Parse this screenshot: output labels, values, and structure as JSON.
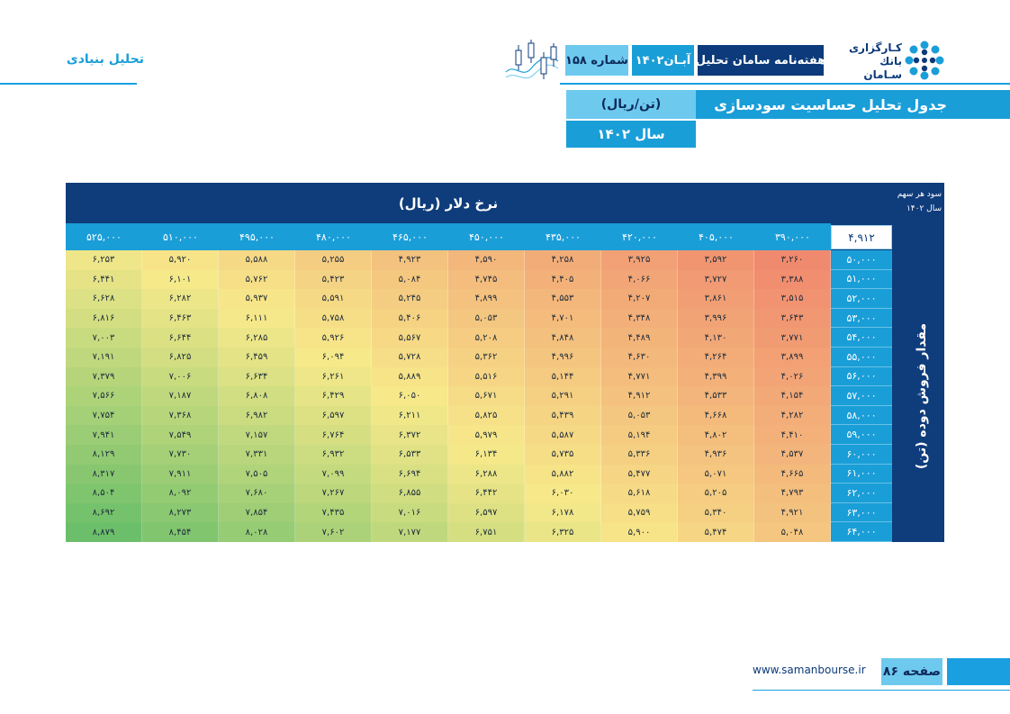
{
  "section_label": "تحلیل بنیادی",
  "header": {
    "weekly": "هفته‌نامه سامان تحلیل",
    "month": "آبـان۱۴۰۲",
    "number": "شماره ۱۵۸",
    "logo_line1": "کـارگزاری",
    "logo_line2": "بانك سـامان"
  },
  "title": "جدول تحلیل حساسیت سودسازی",
  "unit": "(تن/ریال)",
  "year": "سال ۱۴۰۲",
  "table": {
    "dollar_title": "نرخ دلار (ریال)",
    "eps_label_1": "سود هر سهم",
    "eps_label_2": "سال ۱۴۰۲",
    "eps_value": "۴,۹۱۲",
    "qty_label": "مقدار فروش دوده (تن)",
    "prices": [
      "۳۹۰,۰۰۰",
      "۴۰۵,۰۰۰",
      "۴۲۰,۰۰۰",
      "۴۳۵,۰۰۰",
      "۴۵۰,۰۰۰",
      "۴۶۵,۰۰۰",
      "۴۸۰,۰۰۰",
      "۴۹۵,۰۰۰",
      "۵۱۰,۰۰۰",
      "۵۲۵,۰۰۰"
    ],
    "quantities": [
      "۵۰,۰۰۰",
      "۵۱,۰۰۰",
      "۵۲,۰۰۰",
      "۵۳,۰۰۰",
      "۵۴,۰۰۰",
      "۵۵,۰۰۰",
      "۵۶,۰۰۰",
      "۵۷,۰۰۰",
      "۵۸,۰۰۰",
      "۵۹,۰۰۰",
      "۶۰,۰۰۰",
      "۶۱,۰۰۰",
      "۶۲,۰۰۰",
      "۶۳,۰۰۰",
      "۶۴,۰۰۰"
    ],
    "values": [
      [
        "۳,۲۶۰",
        "۳,۵۹۲",
        "۳,۹۲۵",
        "۴,۲۵۸",
        "۴,۵۹۰",
        "۴,۹۲۳",
        "۵,۲۵۵",
        "۵,۵۸۸",
        "۵,۹۲۰",
        "۶,۲۵۳"
      ],
      [
        "۳,۳۸۸",
        "۳,۷۲۷",
        "۴,۰۶۶",
        "۴,۴۰۵",
        "۴,۷۴۵",
        "۵,۰۸۴",
        "۵,۴۲۳",
        "۵,۷۶۲",
        "۶,۱۰۱",
        "۶,۴۴۱"
      ],
      [
        "۳,۵۱۵",
        "۳,۸۶۱",
        "۴,۲۰۷",
        "۴,۵۵۳",
        "۴,۸۹۹",
        "۵,۲۴۵",
        "۵,۵۹۱",
        "۵,۹۳۷",
        "۶,۲۸۲",
        "۶,۶۲۸"
      ],
      [
        "۳,۶۴۳",
        "۳,۹۹۶",
        "۴,۳۴۸",
        "۴,۷۰۱",
        "۵,۰۵۳",
        "۵,۴۰۶",
        "۵,۷۵۸",
        "۶,۱۱۱",
        "۶,۴۶۳",
        "۶,۸۱۶"
      ],
      [
        "۳,۷۷۱",
        "۴,۱۳۰",
        "۴,۴۸۹",
        "۴,۸۴۸",
        "۵,۲۰۸",
        "۵,۵۶۷",
        "۵,۹۲۶",
        "۶,۲۸۵",
        "۶,۶۴۴",
        "۷,۰۰۳"
      ],
      [
        "۳,۸۹۹",
        "۴,۲۶۴",
        "۴,۶۳۰",
        "۴,۹۹۶",
        "۵,۳۶۲",
        "۵,۷۲۸",
        "۶,۰۹۴",
        "۶,۴۵۹",
        "۶,۸۲۵",
        "۷,۱۹۱"
      ],
      [
        "۴,۰۲۶",
        "۴,۳۹۹",
        "۴,۷۷۱",
        "۵,۱۴۴",
        "۵,۵۱۶",
        "۵,۸۸۹",
        "۶,۲۶۱",
        "۶,۶۳۴",
        "۷,۰۰۶",
        "۷,۳۷۹"
      ],
      [
        "۴,۱۵۴",
        "۴,۵۳۳",
        "۴,۹۱۲",
        "۵,۲۹۱",
        "۵,۶۷۱",
        "۶,۰۵۰",
        "۶,۴۲۹",
        "۶,۸۰۸",
        "۷,۱۸۷",
        "۷,۵۶۶"
      ],
      [
        "۴,۲۸۲",
        "۴,۶۶۸",
        "۵,۰۵۳",
        "۵,۴۳۹",
        "۵,۸۲۵",
        "۶,۲۱۱",
        "۶,۵۹۷",
        "۶,۹۸۲",
        "۷,۳۶۸",
        "۷,۷۵۴"
      ],
      [
        "۴,۴۱۰",
        "۴,۸۰۲",
        "۵,۱۹۴",
        "۵,۵۸۷",
        "۵,۹۷۹",
        "۶,۳۷۲",
        "۶,۷۶۴",
        "۷,۱۵۷",
        "۷,۵۴۹",
        "۷,۹۴۱"
      ],
      [
        "۴,۵۳۷",
        "۴,۹۳۶",
        "۵,۳۳۶",
        "۵,۷۳۵",
        "۶,۱۳۴",
        "۶,۵۳۳",
        "۶,۹۳۲",
        "۷,۳۳۱",
        "۷,۷۳۰",
        "۸,۱۲۹"
      ],
      [
        "۴,۶۶۵",
        "۵,۰۷۱",
        "۵,۴۷۷",
        "۵,۸۸۲",
        "۶,۲۸۸",
        "۶,۶۹۴",
        "۷,۰۹۹",
        "۷,۵۰۵",
        "۷,۹۱۱",
        "۸,۳۱۷"
      ],
      [
        "۴,۷۹۳",
        "۵,۲۰۵",
        "۵,۶۱۸",
        "۶,۰۳۰",
        "۶,۴۴۲",
        "۶,۸۵۵",
        "۷,۲۶۷",
        "۷,۶۸۰",
        "۸,۰۹۲",
        "۸,۵۰۴"
      ],
      [
        "۴,۹۲۱",
        "۵,۳۴۰",
        "۵,۷۵۹",
        "۶,۱۷۸",
        "۶,۵۹۷",
        "۷,۰۱۶",
        "۷,۴۳۵",
        "۷,۸۵۴",
        "۸,۲۷۳",
        "۸,۶۹۲"
      ],
      [
        "۵,۰۴۸",
        "۵,۴۷۴",
        "۵,۹۰۰",
        "۶,۳۲۵",
        "۶,۷۵۱",
        "۷,۱۷۷",
        "۷,۶۰۲",
        "۸,۰۲۸",
        "۸,۴۵۴",
        "۸,۸۷۹"
      ]
    ]
  },
  "footer": {
    "url": "www.samanbourse.ir",
    "page": "صفحه ۸۶"
  },
  "colors": {
    "dark_blue": "#0f3c7b",
    "blue": "#1a9ed8",
    "light_blue": "#6ec9ef",
    "heat_low": "#f08a6e",
    "heat_mid": "#f7e98a",
    "heat_high": "#6cbf6a"
  }
}
